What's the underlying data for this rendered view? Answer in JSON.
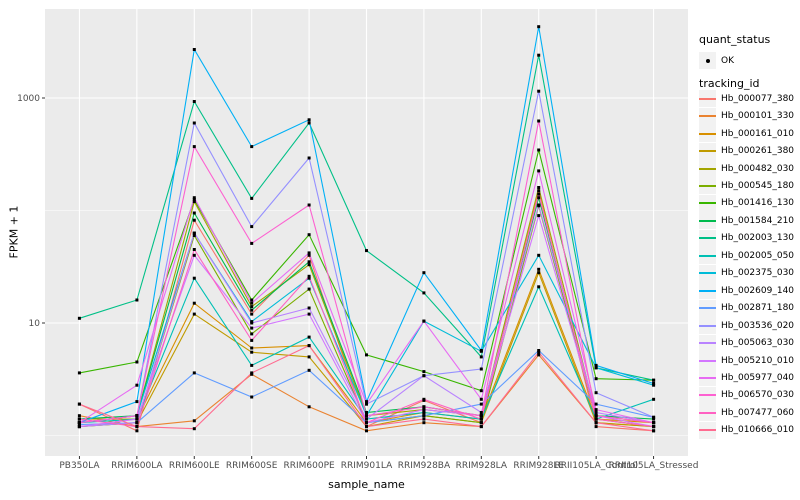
{
  "chart_data": {
    "type": "line",
    "title": "",
    "xlabel": "sample_name",
    "ylabel": "FPKM + 1",
    "y_scale": "log10",
    "legend_position": "right",
    "grid": true,
    "y_major_ticks": [
      {
        "value": 10,
        "label": "10"
      },
      {
        "value": 1000,
        "label": "1000"
      }
    ],
    "y_minor_gridlines": [
      1,
      100
    ],
    "ylim": [
      0.66,
      6400
    ],
    "categories": [
      "PB350LA",
      "RRIM600LA",
      "RRIM600LE",
      "RRIM600SE",
      "RRIM600PE",
      "RRIM901LA",
      "RRIM928BA",
      "RRIM928LA",
      "RRIM928LE",
      "RRII105LA_Control",
      "RRII105LA_Stressed"
    ],
    "series": [
      {
        "name": "Hb_000077_380",
        "color": "#F8766D",
        "values": [
          1.9,
          1.1,
          82,
          12,
          40,
          1.2,
          2.05,
          1.3,
          150,
          1.2,
          1.1
        ]
      },
      {
        "name": "Hb_000101_330",
        "color": "#EA8331",
        "values": [
          1.5,
          1.2,
          1.35,
          3.5,
          1.8,
          1.1,
          1.3,
          1.2,
          5.2,
          1.3,
          1.2
        ]
      },
      {
        "name": "Hb_000161_010",
        "color": "#D89000",
        "values": [
          1.4,
          1.4,
          15,
          6,
          6.3,
          1.3,
          1.6,
          1.4,
          30,
          1.4,
          1.3
        ]
      },
      {
        "name": "Hb_000261_380",
        "color": "#C09B00",
        "values": [
          1.2,
          1.3,
          12,
          5.5,
          5,
          1.2,
          1.5,
          1.3,
          28,
          1.3,
          1.2
        ]
      },
      {
        "name": "Hb_000482_030",
        "color": "#A3A500",
        "values": [
          1.3,
          1.5,
          120,
          14,
          33,
          1.5,
          1.7,
          1.5,
          160,
          1.5,
          1.3
        ]
      },
      {
        "name": "Hb_000545_180",
        "color": "#7CAE00",
        "values": [
          1.2,
          1.3,
          60,
          8,
          20,
          1.3,
          1.5,
          1.3,
          110,
          1.4,
          1.2
        ]
      },
      {
        "name": "Hb_001416_130",
        "color": "#39B600",
        "values": [
          3.6,
          4.5,
          125,
          16,
          61,
          5.2,
          3.7,
          2.5,
          345,
          3.2,
          3.1
        ]
      },
      {
        "name": "Hb_001584_210",
        "color": "#00BB4E",
        "values": [
          1.4,
          1.5,
          95,
          13,
          35,
          1.6,
          1.8,
          1.5,
          130,
          1.5,
          1.4
        ]
      },
      {
        "name": "Hb_002003_130",
        "color": "#00C087",
        "values": [
          11,
          16,
          930,
          128,
          600,
          44,
          18.5,
          5,
          2400,
          4,
          3.1
        ]
      },
      {
        "name": "Hb_002005_050",
        "color": "#00C0B4",
        "values": [
          1.3,
          1.4,
          25,
          4.2,
          7.5,
          1.4,
          1.6,
          1.4,
          21,
          1.4,
          2.1
        ]
      },
      {
        "name": "Hb_002375_030",
        "color": "#00BCD8",
        "values": [
          1.3,
          1.5,
          63,
          10.3,
          25,
          1.5,
          10.4,
          5.6,
          40,
          4,
          2.8
        ]
      },
      {
        "name": "Hb_002609_140",
        "color": "#00B0F6",
        "values": [
          1.3,
          2,
          2700,
          370,
          640,
          2,
          28,
          5.7,
          4300,
          4.2,
          2.9
        ]
      },
      {
        "name": "Hb_002871_180",
        "color": "#619CFF",
        "values": [
          1.25,
          1.3,
          3.6,
          2.2,
          3.8,
          1.3,
          1.5,
          1.9,
          5.7,
          1.9,
          1.45
        ]
      },
      {
        "name": "Hb_003536_020",
        "color": "#9590FF",
        "values": [
          1.3,
          1.5,
          600,
          72,
          293,
          1.9,
          3.4,
          3.9,
          1150,
          2.4,
          1.45
        ]
      },
      {
        "name": "Hb_005063_030",
        "color": "#B983FF",
        "values": [
          1.2,
          1.3,
          63,
          10,
          13.6,
          1.4,
          3.4,
          1.6,
          112,
          1.6,
          1.3
        ]
      },
      {
        "name": "Hb_005210_010",
        "color": "#D376FF",
        "values": [
          1.2,
          1.4,
          40,
          9,
          12,
          1.3,
          1.7,
          1.5,
          90,
          1.5,
          1.2
        ]
      },
      {
        "name": "Hb_005977_040",
        "color": "#E76BF3",
        "values": [
          1.3,
          2.8,
          130,
          15,
          42,
          1.9,
          10.4,
          2.1,
          225,
          1.7,
          1.3
        ]
      },
      {
        "name": "Hb_006570_030",
        "color": "#FD61D1",
        "values": [
          1.3,
          1.5,
          370,
          51,
          112,
          1.5,
          1.8,
          1.5,
          625,
          1.5,
          1.3
        ]
      },
      {
        "name": "Hb_007477_060",
        "color": "#FF61C2",
        "values": [
          1.4,
          1.2,
          45,
          7,
          26,
          1.3,
          2.1,
          1.4,
          140,
          1.4,
          1.2
        ]
      },
      {
        "name": "Hb_010666_010",
        "color": "#FF6C91",
        "values": [
          1.9,
          1.2,
          1.15,
          3.6,
          6.3,
          1.2,
          1.4,
          1.2,
          5.5,
          1.3,
          1.1
        ]
      }
    ]
  },
  "legend": {
    "quant_status_title": "quant_status",
    "quant_status_items": [
      {
        "label": "OK",
        "symbol": "point"
      }
    ],
    "tracking_title": "tracking_id"
  },
  "colors": {
    "panel_bg": "#EBEBEB",
    "grid": "#FFFFFF",
    "tick_text": "#4D4D4D",
    "tick_mark": "#333333",
    "point": "#000000",
    "legend_key_bg": "#F2F2F2"
  }
}
